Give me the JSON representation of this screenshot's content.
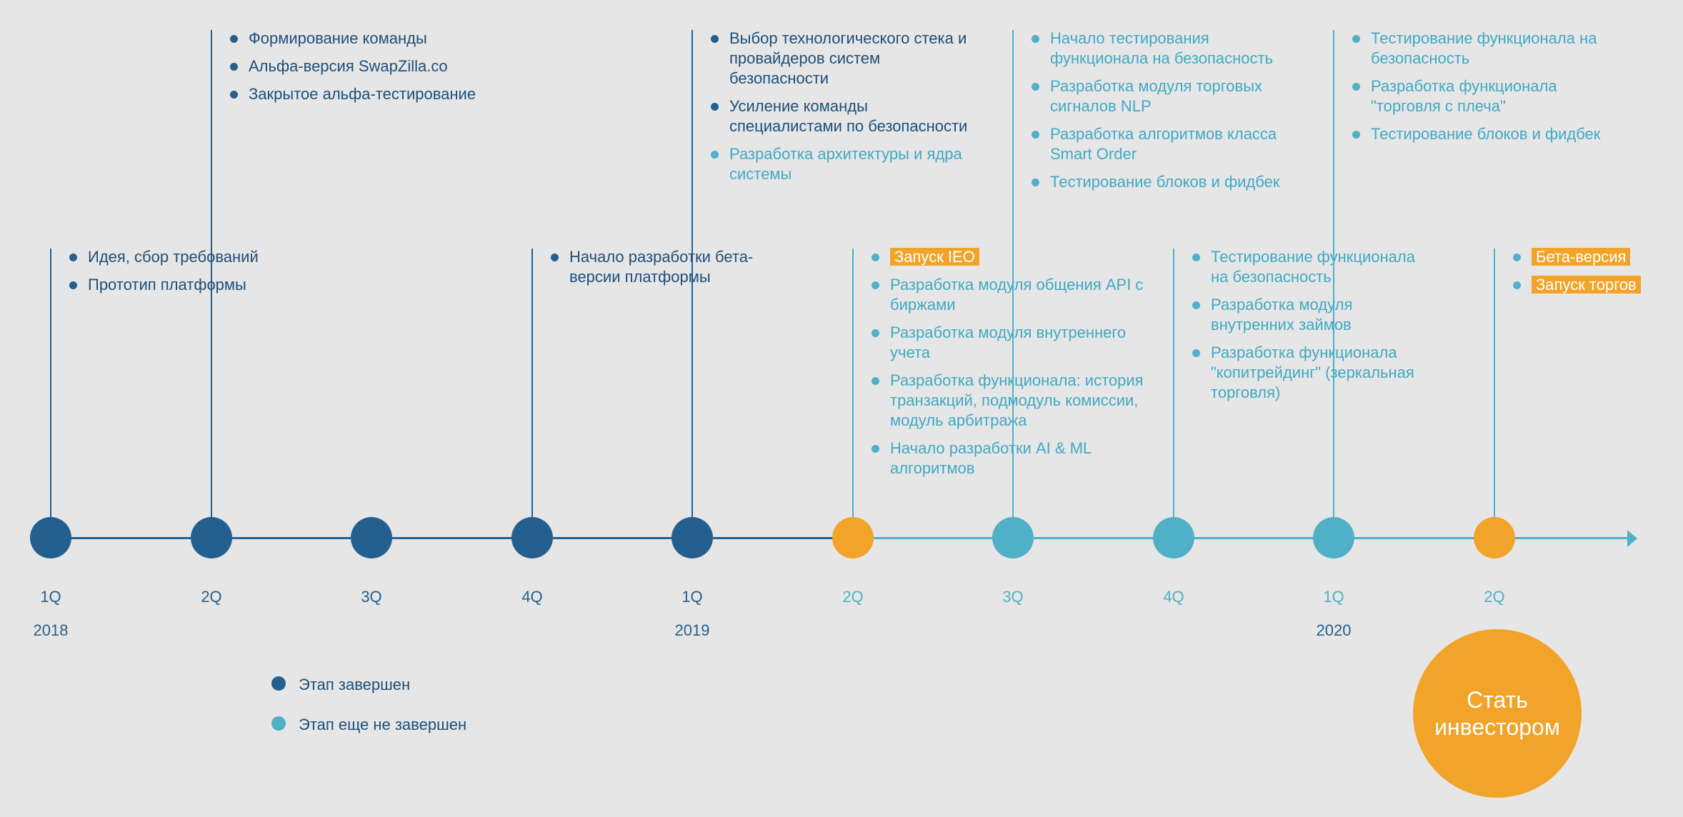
{
  "colors": {
    "done": "#24608f",
    "pending": "#4fb0c8",
    "highlight": "#f2a42a",
    "background": "#e6e6e6"
  },
  "timeline": [
    {
      "quarter": "1Q",
      "year": "2018",
      "status": "done",
      "items": [
        {
          "text": "Идея, сбор требований",
          "status": "done",
          "highlight": false
        },
        {
          "text": "Прототип платформы",
          "status": "done",
          "highlight": false
        }
      ]
    },
    {
      "quarter": "2Q",
      "year": "",
      "status": "done",
      "items": [
        {
          "text": "Формирование команды",
          "status": "done",
          "highlight": false
        },
        {
          "text": "Альфа-версия SwapZilla.co",
          "status": "done",
          "highlight": false
        },
        {
          "text": "Закрытое альфа-тестирование",
          "status": "done",
          "highlight": false
        }
      ]
    },
    {
      "quarter": "3Q",
      "year": "",
      "status": "done",
      "items": []
    },
    {
      "quarter": "4Q",
      "year": "",
      "status": "done",
      "items": [
        {
          "text": "Начало разработки бета-версии платформы",
          "status": "done",
          "highlight": false
        }
      ]
    },
    {
      "quarter": "1Q",
      "year": "2019",
      "status": "done",
      "items": [
        {
          "text": "Выбор технологического стека и провайдеров систем безопасности",
          "status": "done",
          "highlight": false
        },
        {
          "text": "Усиление команды специалистами по безопасности",
          "status": "done",
          "highlight": false
        },
        {
          "text": "Разработка архитектуры и ядра системы",
          "status": "pending",
          "highlight": false
        }
      ]
    },
    {
      "quarter": "2Q",
      "year": "",
      "status": "milestone",
      "items": [
        {
          "text": "Запуск IEO",
          "status": "pending",
          "highlight": true
        },
        {
          "text": "Разработка модуля общения API с биржами",
          "status": "pending",
          "highlight": false
        },
        {
          "text": "Разработка модуля внутреннего учета",
          "status": "pending",
          "highlight": false
        },
        {
          "text": "Разработка функционала: история транзакций, подмодуль комиссии, модуль арбитража",
          "status": "pending",
          "highlight": false
        },
        {
          "text": "Начало разработки AI & ML алгоритмов",
          "status": "pending",
          "highlight": false
        }
      ]
    },
    {
      "quarter": "3Q",
      "year": "",
      "status": "pending",
      "items": [
        {
          "text": "Начало тестирования функционала на безопасность",
          "status": "pending",
          "highlight": false
        },
        {
          "text": "Разработка модуля торговых сигналов NLP",
          "status": "pending",
          "highlight": false
        },
        {
          "text": "Разработка алгоритмов класса Smart Order",
          "status": "pending",
          "highlight": false
        },
        {
          "text": "Тестирование блоков и фидбек",
          "status": "pending",
          "highlight": false
        }
      ]
    },
    {
      "quarter": "4Q",
      "year": "",
      "status": "pending",
      "items": [
        {
          "text": "Тестирование функционала на безопасность",
          "status": "pending",
          "highlight": false
        },
        {
          "text": "Разработка модуля внутренних займов",
          "status": "pending",
          "highlight": false
        },
        {
          "text": "Разработка функционала \"копитрейдинг\" (зеркальная торговля)",
          "status": "pending",
          "highlight": false
        }
      ]
    },
    {
      "quarter": "1Q",
      "year": "2020",
      "status": "pending",
      "items": [
        {
          "text": "Тестирование функционала на безопасность",
          "status": "pending",
          "highlight": false
        },
        {
          "text": "Разработка функционала \"торговля с плеча\"",
          "status": "pending",
          "highlight": false
        },
        {
          "text": "Тестирование блоков и фидбек",
          "status": "pending",
          "highlight": false
        }
      ]
    },
    {
      "quarter": "2Q",
      "year": "",
      "status": "milestone",
      "items": [
        {
          "text": "Бета-версия",
          "status": "pending",
          "highlight": true
        },
        {
          "text": "Запуск торгов",
          "status": "pending",
          "highlight": true
        }
      ]
    }
  ],
  "legend": {
    "done": "Этап завершен",
    "pending": "Этап еще не завершен"
  },
  "cta": {
    "label": "Стать инвестором"
  }
}
